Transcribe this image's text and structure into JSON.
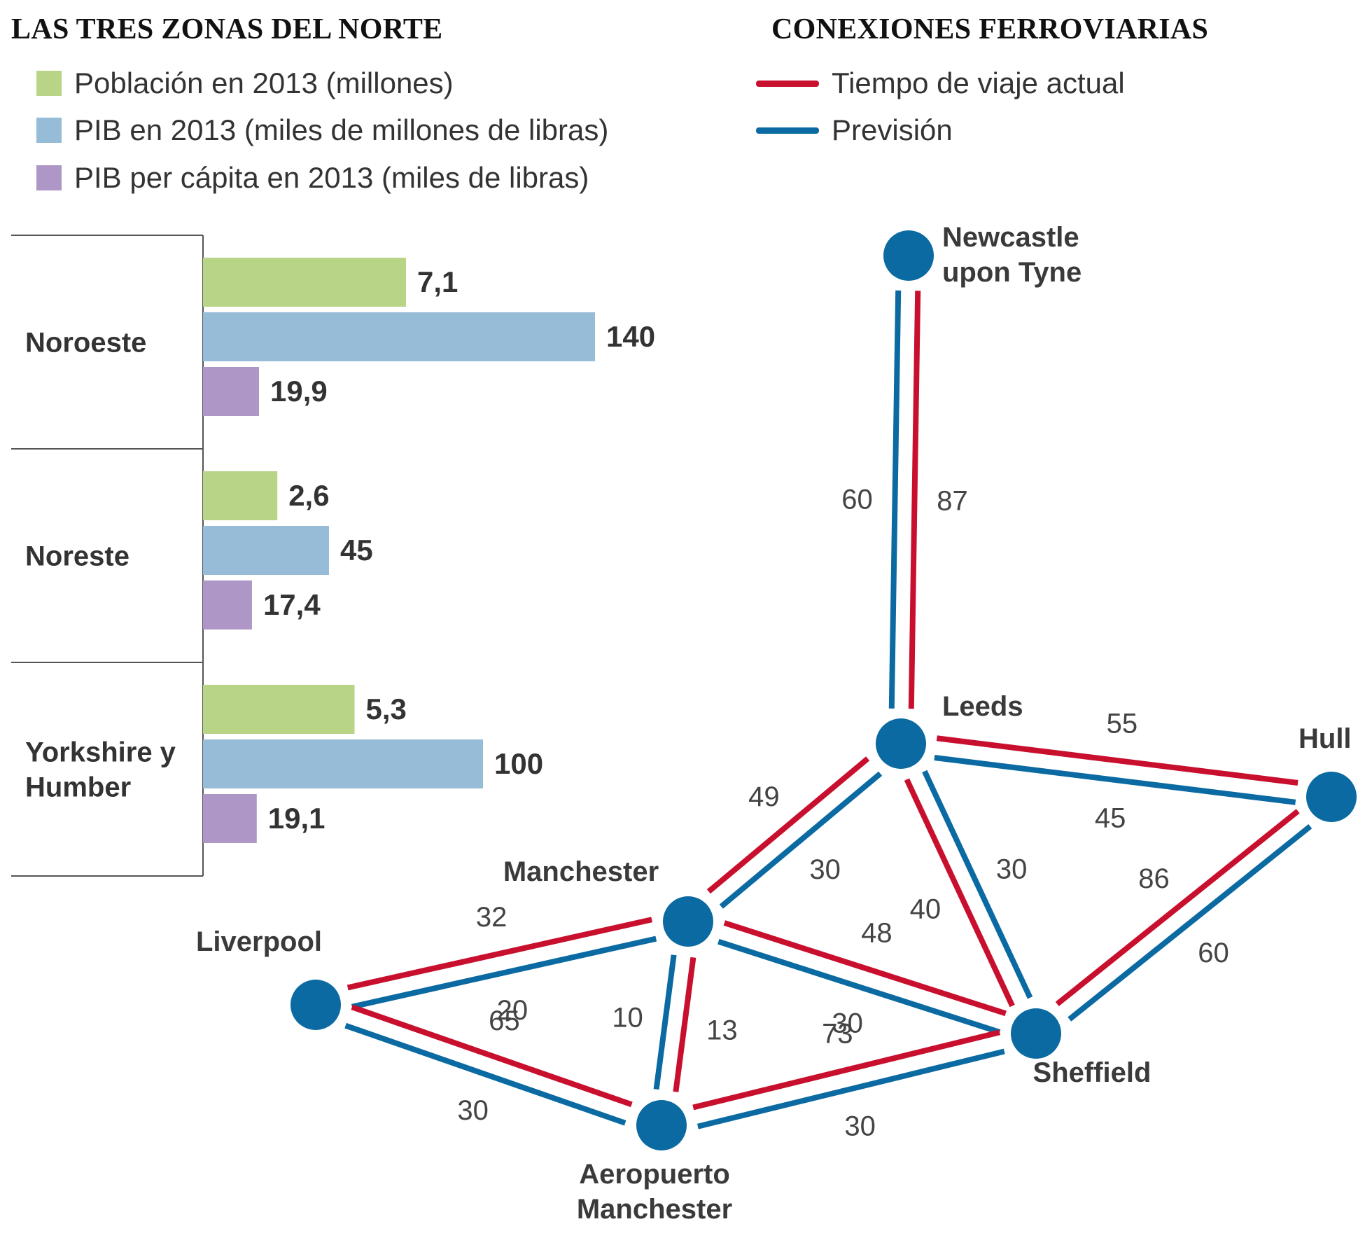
{
  "bars": {
    "title": "LAS TRES ZONAS DEL NORTE",
    "legend": [
      {
        "label": "Población en 2013 (millones)",
        "color": "#b8d486"
      },
      {
        "label": "PIB en 2013 (miles de millones de libras)",
        "color": "#97bcd8"
      },
      {
        "label": "PIB per cápita en 2013 (miles de libras)",
        "color": "#ae96c6"
      }
    ]
  },
  "network": {
    "title": "CONEXIONES FERROVIARIAS",
    "legend": [
      {
        "label": "Tiempo de viaje actual",
        "color": "#c8102e"
      },
      {
        "label": "Previsión",
        "color": "#0a6aa1"
      }
    ]
  },
  "chart_data": [
    {
      "type": "bar",
      "orientation": "horizontal",
      "categories": [
        "Noroeste",
        "Noreste",
        "Yorkshire y Humber"
      ],
      "category_lines": [
        [
          "Noroeste"
        ],
        [
          "Noreste"
        ],
        [
          "Yorkshire y",
          "Humber"
        ]
      ],
      "series": [
        {
          "name": "Población en 2013 (millones)",
          "values": [
            7.1,
            2.6,
            5.3
          ],
          "labels": [
            "7,1",
            "2,6",
            "5,3"
          ],
          "color": "#b8d486"
        },
        {
          "name": "PIB en 2013 (miles de millones de libras)",
          "values": [
            140,
            45,
            100
          ],
          "labels": [
            "140",
            "45",
            "100"
          ],
          "color": "#97bcd8"
        },
        {
          "name": "PIB per cápita en 2013 (miles de libras)",
          "values": [
            19.9,
            17.4,
            19.1
          ],
          "labels": [
            "19,9",
            "17,4",
            "19,1"
          ],
          "color": "#ae96c6"
        }
      ]
    },
    {
      "type": "network",
      "nodes": [
        {
          "id": "newcastle",
          "label_lines": [
            "Newcastle",
            "upon Tyne"
          ]
        },
        {
          "id": "leeds",
          "label_lines": [
            "Leeds"
          ]
        },
        {
          "id": "hull",
          "label_lines": [
            "Hull"
          ]
        },
        {
          "id": "manchester",
          "label_lines": [
            "Manchester"
          ]
        },
        {
          "id": "liverpool",
          "label_lines": [
            "Liverpool"
          ]
        },
        {
          "id": "sheffield",
          "label_lines": [
            "Sheffield"
          ]
        },
        {
          "id": "airport",
          "label_lines": [
            "Aeropuerto",
            "Manchester"
          ]
        }
      ],
      "edges": [
        {
          "from": "newcastle",
          "to": "leeds",
          "actual": 87,
          "forecast": 60
        },
        {
          "from": "leeds",
          "to": "hull",
          "actual": 55,
          "forecast": 45
        },
        {
          "from": "leeds",
          "to": "manchester",
          "actual": 49,
          "forecast": 30
        },
        {
          "from": "leeds",
          "to": "sheffield",
          "actual": 40,
          "forecast": 30
        },
        {
          "from": "hull",
          "to": "sheffield",
          "actual": 86,
          "forecast": 60
        },
        {
          "from": "manchester",
          "to": "liverpool",
          "actual": 32,
          "forecast": 20
        },
        {
          "from": "manchester",
          "to": "sheffield",
          "actual": 48,
          "forecast": 30
        },
        {
          "from": "manchester",
          "to": "airport",
          "actual": 13,
          "forecast": 10
        },
        {
          "from": "liverpool",
          "to": "airport",
          "actual": 65,
          "forecast": 30
        },
        {
          "from": "sheffield",
          "to": "airport",
          "actual": 73,
          "forecast": 30
        }
      ]
    }
  ]
}
